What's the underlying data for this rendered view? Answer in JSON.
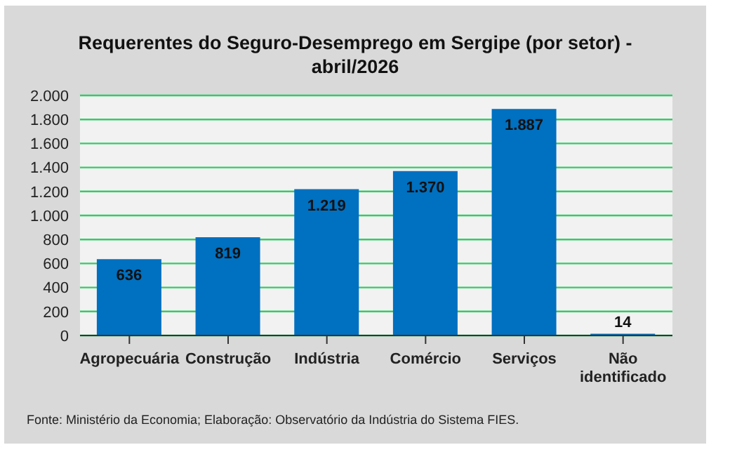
{
  "chart_data": {
    "type": "bar",
    "title": "Requerentes do Seguro-Desemprego em Sergipe (por setor) - abril/2026",
    "categories": [
      "Agropecuária",
      "Construção",
      "Indústria",
      "Comércio",
      "Serviços",
      "Não identificado"
    ],
    "values": [
      636,
      819,
      1219,
      1370,
      1887,
      14
    ],
    "value_labels": [
      "636",
      "819",
      "1.219",
      "1.370",
      "1.887",
      "14"
    ],
    "color": "#0070c0",
    "ylim": [
      0,
      2000
    ],
    "yticks": [
      {
        "value": 0,
        "label": "0"
      },
      {
        "value": 200,
        "label": "200"
      },
      {
        "value": 400,
        "label": "400"
      },
      {
        "value": 600,
        "label": "600"
      },
      {
        "value": 800,
        "label": "800"
      },
      {
        "value": 1000,
        "label": "1.000"
      },
      {
        "value": 1200,
        "label": "1.200"
      },
      {
        "value": 1400,
        "label": "1.400"
      },
      {
        "value": 1600,
        "label": "1.600"
      },
      {
        "value": 1800,
        "label": "1.800"
      },
      {
        "value": 2000,
        "label": "2.000"
      }
    ],
    "grid": "y",
    "annotations": [
      "Fonte: Ministério da Economia; Elaboração: Observatório da Indústria do Sistema FIES."
    ]
  }
}
